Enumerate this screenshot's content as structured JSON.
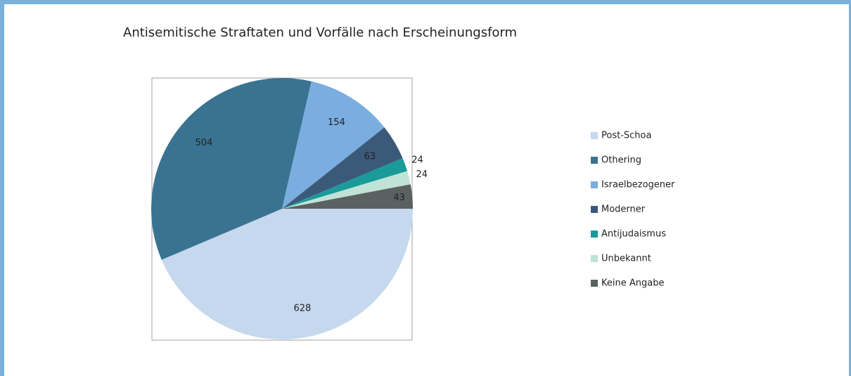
{
  "chart_data": {
    "type": "pie",
    "title": "Antisemitische Straftaten und Vorfälle nach Erscheinungsform",
    "categories": [
      "Post-Schoa",
      "Othering",
      "Israelbezogener",
      "Moderner",
      "Antijudaismus",
      "Unbekannt",
      "Keine Angabe"
    ],
    "values": [
      628,
      504,
      154,
      63,
      24,
      24,
      43
    ],
    "colors": [
      "#c5d8ee",
      "#3a7391",
      "#7aade0",
      "#3b5a7a",
      "#1a9b9b",
      "#bfe3d6",
      "#5b6161"
    ],
    "legend": "right"
  }
}
